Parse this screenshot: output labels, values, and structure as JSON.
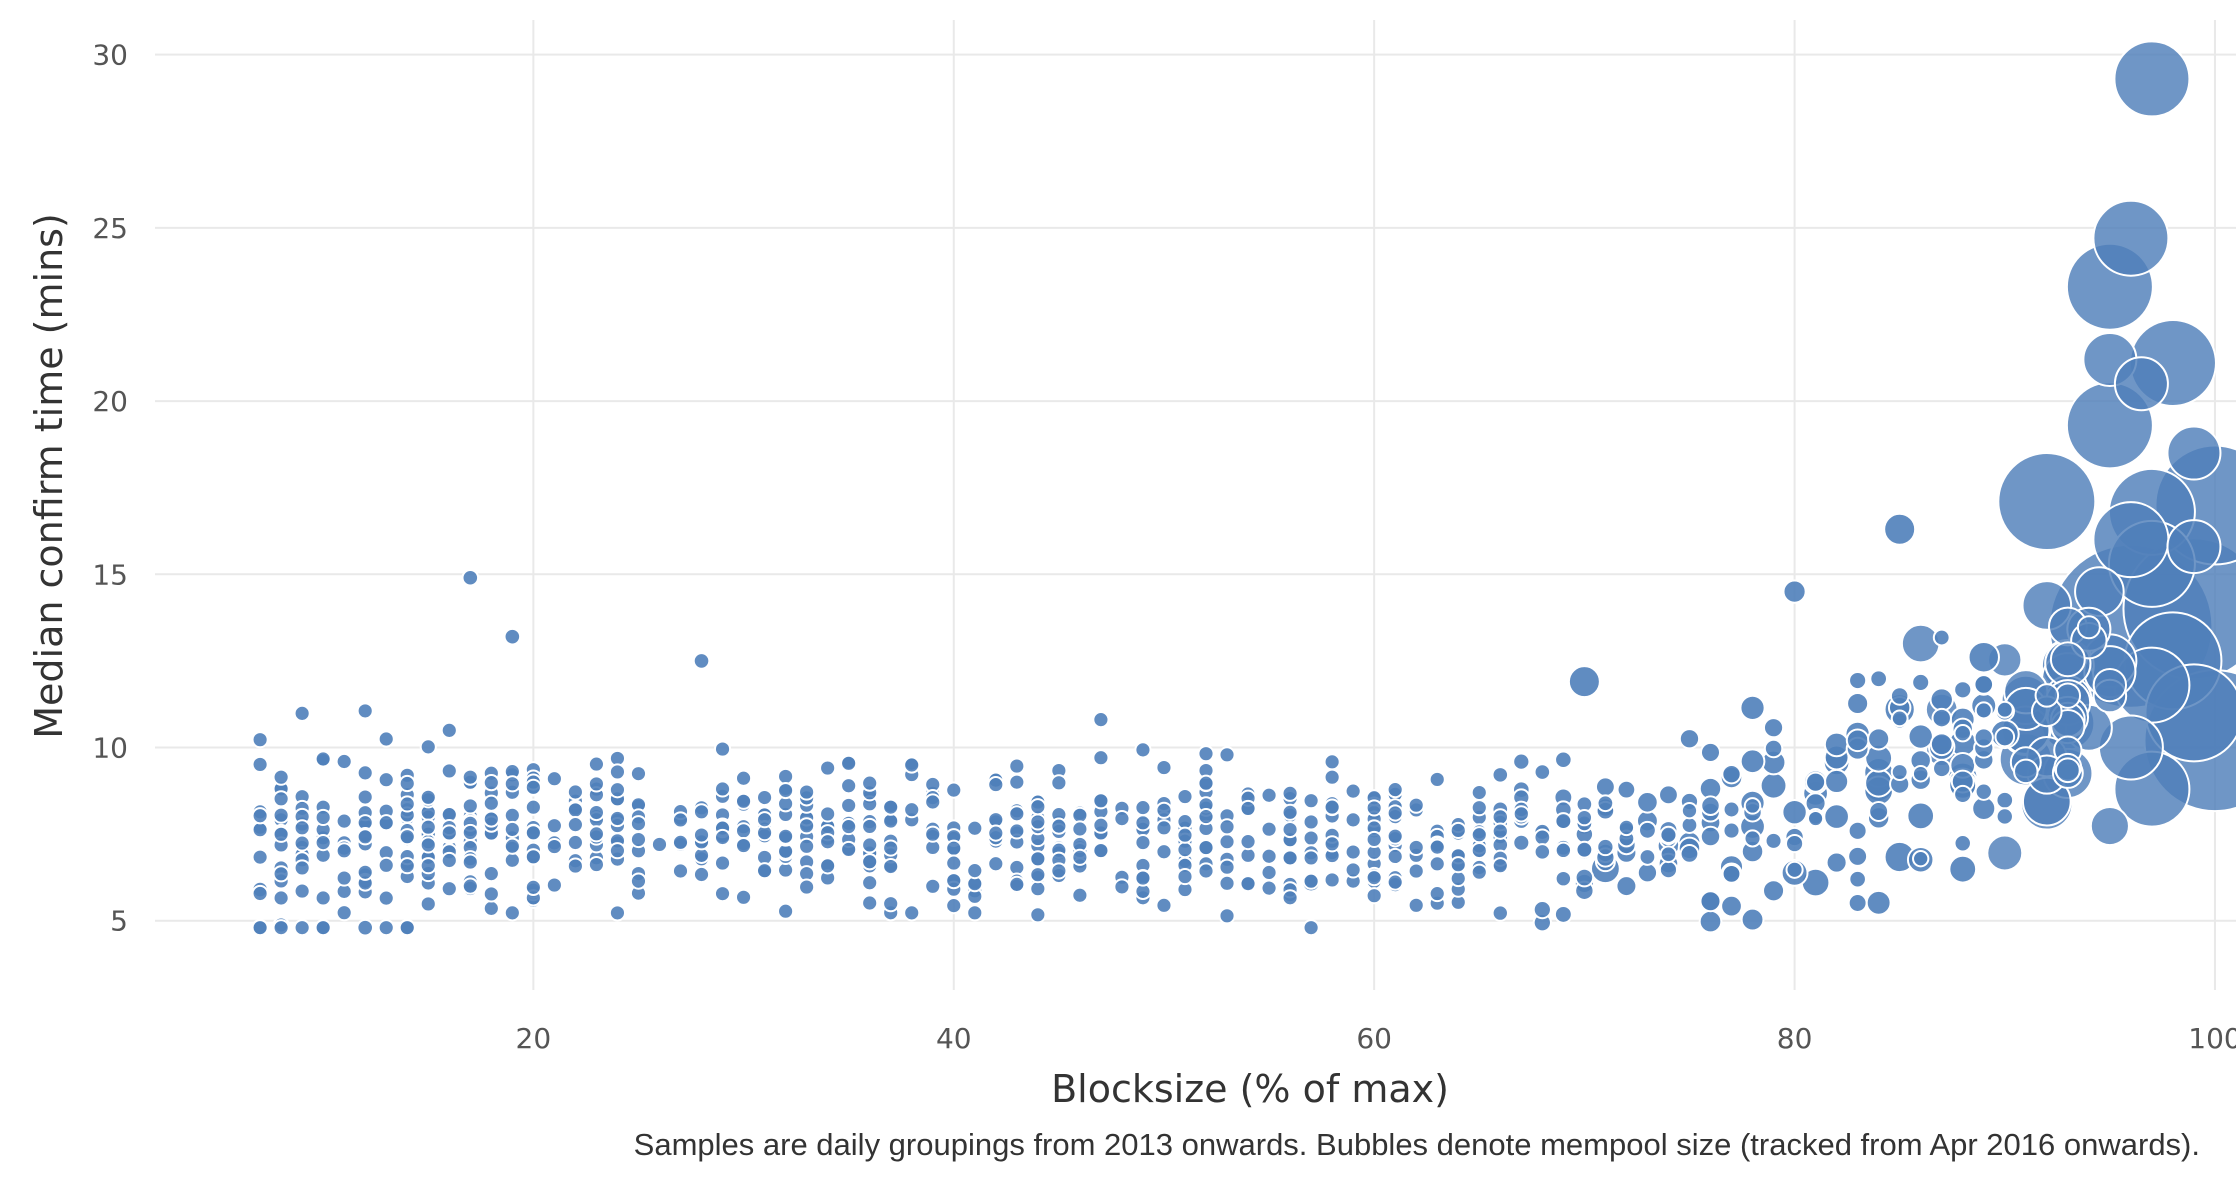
{
  "colors": {
    "bubble": "#4f7fba",
    "grid": "#e9e9e9",
    "background": "#ffffff"
  },
  "chart_data": {
    "type": "scatter",
    "xlabel": "Blocksize (% of max)",
    "ylabel": "Median confirm time (mins)",
    "caption": "Samples are daily groupings from 2013 onwards. Bubbles denote mempool size (tracked from Apr 2016 onwards).",
    "xlim": [
      2,
      101
    ],
    "ylim": [
      3,
      31
    ],
    "xticks": [
      20,
      40,
      60,
      80,
      100
    ],
    "yticks": [
      5,
      10,
      15,
      20,
      25,
      30
    ],
    "grid": true,
    "legend": "none",
    "marker_color": "#4f7fba",
    "notable_points": [
      {
        "x": 97,
        "y": 29.3,
        "size": 3.0
      },
      {
        "x": 96,
        "y": 24.7,
        "size": 3.0
      },
      {
        "x": 95,
        "y": 23.3,
        "size": 3.5
      },
      {
        "x": 98,
        "y": 21.1,
        "size": 3.5
      },
      {
        "x": 95,
        "y": 21.2,
        "size": 2.0
      },
      {
        "x": 96.5,
        "y": 20.5,
        "size": 2.0
      },
      {
        "x": 95,
        "y": 19.3,
        "size": 3.5
      },
      {
        "x": 99,
        "y": 18.5,
        "size": 2.0
      },
      {
        "x": 92,
        "y": 17.1,
        "size": 4.0
      },
      {
        "x": 100,
        "y": 17.0,
        "size": 5.0
      },
      {
        "x": 97,
        "y": 16.8,
        "size": 3.5
      },
      {
        "x": 96,
        "y": 16.0,
        "size": 3.0
      },
      {
        "x": 97,
        "y": 15.3,
        "size": 3.5
      },
      {
        "x": 99,
        "y": 15.8,
        "size": 2.0
      },
      {
        "x": 99,
        "y": 14.0,
        "size": 6.0
      },
      {
        "x": 96,
        "y": 13.5,
        "size": 7.0
      },
      {
        "x": 98,
        "y": 12.5,
        "size": 4.0
      },
      {
        "x": 97,
        "y": 11.8,
        "size": 3.0
      },
      {
        "x": 95,
        "y": 12.5,
        "size": 2.0
      },
      {
        "x": 100,
        "y": 10.2,
        "size": 6.0
      },
      {
        "x": 99,
        "y": 11.0,
        "size": 4.0
      },
      {
        "x": 96,
        "y": 10.0,
        "size": 2.5
      },
      {
        "x": 97,
        "y": 8.8,
        "size": 3.0
      },
      {
        "x": 93,
        "y": 10.7,
        "size": 2.0
      },
      {
        "x": 92,
        "y": 14.1,
        "size": 1.8
      },
      {
        "x": 94.5,
        "y": 14.5,
        "size": 1.8
      },
      {
        "x": 85,
        "y": 16.3,
        "size": 1.0
      },
      {
        "x": 86,
        "y": 13.0,
        "size": 1.3
      },
      {
        "x": 70,
        "y": 11.9,
        "size": 1.0
      },
      {
        "x": 17,
        "y": 14.9,
        "size": 0.3
      },
      {
        "x": 19,
        "y": 13.2,
        "size": 0.3
      },
      {
        "x": 28,
        "y": 12.5,
        "size": 0.3
      },
      {
        "x": 80,
        "y": 14.5,
        "size": 0.6
      },
      {
        "x": 57,
        "y": 6.1,
        "size": 0.4
      },
      {
        "x": 72,
        "y": 6.0,
        "size": 0.5
      },
      {
        "x": 71,
        "y": 6.5,
        "size": 0.9
      },
      {
        "x": 12,
        "y": 4.8,
        "size": 0.3
      },
      {
        "x": 7,
        "y": 5.9,
        "size": 0.3
      }
    ]
  }
}
